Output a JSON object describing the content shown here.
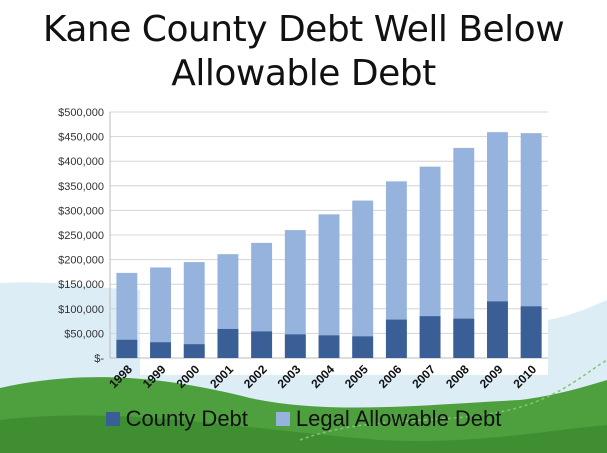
{
  "title_line1": "Kane County Debt Well Below",
  "title_line2": "Allowable Debt",
  "chart_data": {
    "type": "bar",
    "title": "Kane County Debt Well Below Allowable Debt",
    "categories": [
      "1998",
      "1999",
      "2000",
      "2001",
      "2002",
      "2003",
      "2004",
      "2005",
      "2006",
      "2007",
      "2008",
      "2009",
      "2010"
    ],
    "series": [
      {
        "name": "County Debt",
        "color": "#3a5f96",
        "values": [
          37000,
          32000,
          28000,
          59000,
          54000,
          48000,
          46000,
          44000,
          78000,
          85000,
          80000,
          115000,
          105000
        ]
      },
      {
        "name": "Legal Allowable Debt",
        "color": "#95b3dc",
        "values": [
          173000,
          184000,
          195000,
          211000,
          234000,
          260000,
          292000,
          320000,
          359000,
          389000,
          427000,
          459000,
          457000
        ]
      }
    ],
    "ylim": [
      0,
      500000
    ],
    "yticks": [
      0,
      50000,
      100000,
      150000,
      200000,
      250000,
      300000,
      350000,
      400000,
      450000,
      500000
    ],
    "ytick_labels": [
      "$-",
      "$50,000",
      "$100,000",
      "$150,000",
      "$200,000",
      "$250,000",
      "$300,000",
      "$350,000",
      "$400,000",
      "$450,000",
      "$500,000"
    ],
    "grid": true,
    "legend": "bottom"
  }
}
